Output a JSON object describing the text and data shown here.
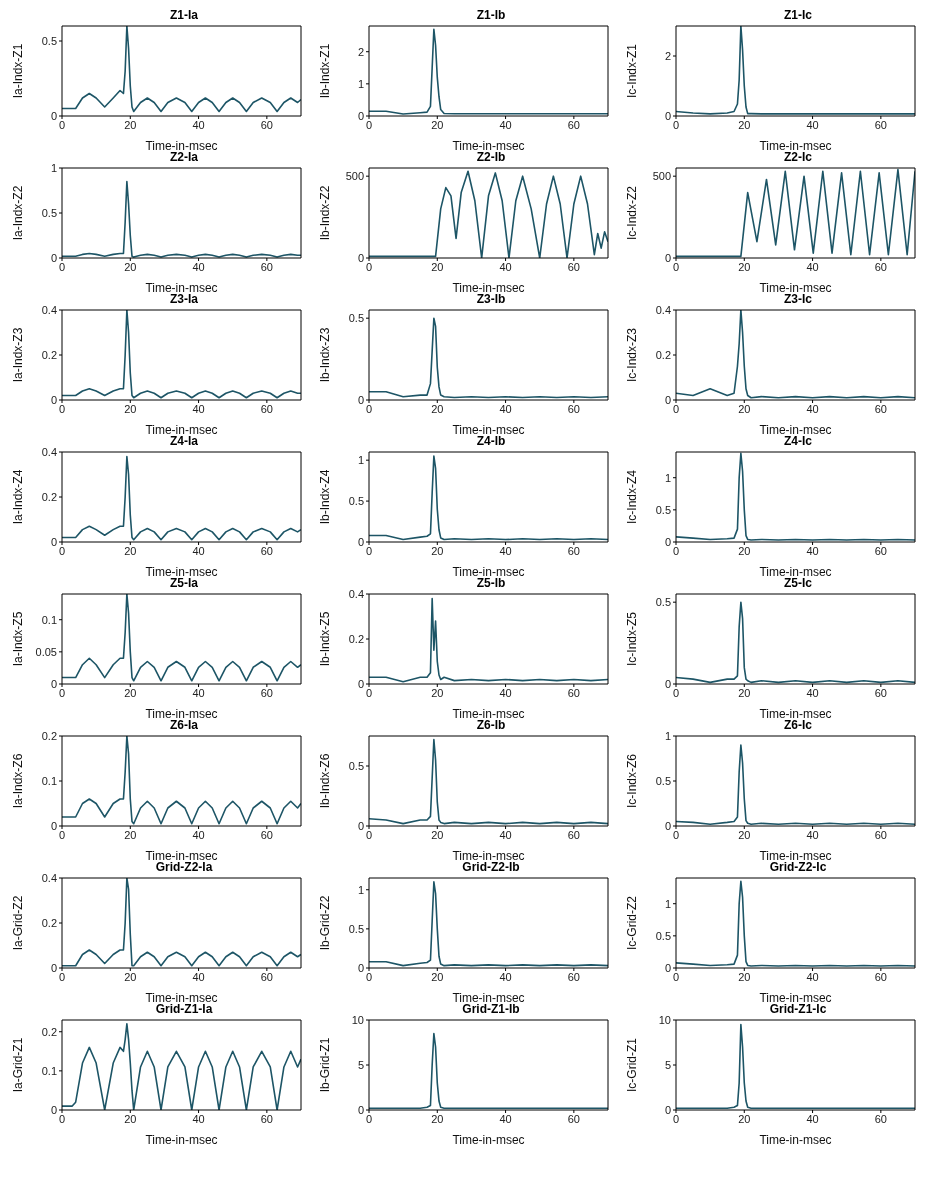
{
  "chart_data": [
    {
      "type": "line",
      "title": "Z1-Ia",
      "xlabel": "Time-in-msec",
      "ylabel": "Ia-Indx-Z1",
      "color": "#1d5566",
      "xlim": [
        0,
        70
      ],
      "xticks": [
        0,
        20,
        40,
        60
      ],
      "ylim": [
        0,
        0.6
      ],
      "yticks": [
        0,
        0.5
      ],
      "x": [
        0,
        3,
        4,
        6,
        8,
        10,
        12.5,
        15,
        17,
        18,
        18.5,
        19,
        19.5,
        20,
        20.5,
        21,
        23,
        25,
        27,
        29,
        31,
        33.5,
        36,
        38,
        40,
        42,
        44,
        46,
        48,
        50,
        52,
        54,
        56,
        58.5,
        61,
        63,
        65,
        67,
        69,
        70
      ],
      "values": [
        0.05,
        0.05,
        0.05,
        0.12,
        0.15,
        0.12,
        0.06,
        0.12,
        0.17,
        0.15,
        0.3,
        0.6,
        0.45,
        0.2,
        0.06,
        0.03,
        0.09,
        0.12,
        0.09,
        0.03,
        0.09,
        0.12,
        0.09,
        0.03,
        0.09,
        0.12,
        0.09,
        0.03,
        0.09,
        0.12,
        0.09,
        0.03,
        0.09,
        0.12,
        0.09,
        0.03,
        0.09,
        0.12,
        0.09,
        0.11
      ]
    },
    {
      "type": "line",
      "title": "Z1-Ib",
      "xlabel": "Time-in-msec",
      "ylabel": "Ib-Indx-Z1",
      "color": "#1d5566",
      "xlim": [
        0,
        70
      ],
      "xticks": [
        0,
        20,
        40,
        60
      ],
      "ylim": [
        0,
        2.8
      ],
      "yticks": [
        0,
        1,
        2
      ],
      "x": [
        0,
        5,
        10,
        15,
        17,
        18,
        18.5,
        19,
        19.5,
        20,
        20.5,
        21,
        22,
        25,
        30,
        35,
        40,
        45,
        50,
        55,
        60,
        65,
        70
      ],
      "values": [
        0.15,
        0.15,
        0.06,
        0.1,
        0.12,
        0.3,
        1.5,
        2.7,
        2.2,
        1.2,
        0.6,
        0.2,
        0.08,
        0.07,
        0.07,
        0.07,
        0.07,
        0.07,
        0.07,
        0.07,
        0.07,
        0.07,
        0.07
      ]
    },
    {
      "type": "line",
      "title": "Z1-Ic",
      "xlabel": "Time-in-msec",
      "ylabel": "Ic-Indx-Z1",
      "color": "#1d5566",
      "xlim": [
        0,
        70
      ],
      "xticks": [
        0,
        20,
        40,
        60
      ],
      "ylim": [
        0,
        3
      ],
      "yticks": [
        0,
        2
      ],
      "x": [
        0,
        5,
        10,
        15,
        17,
        18,
        18.5,
        19,
        19.5,
        20,
        20.5,
        21,
        22,
        25,
        30,
        35,
        40,
        45,
        50,
        55,
        60,
        65,
        70
      ],
      "values": [
        0.15,
        0.1,
        0.07,
        0.1,
        0.15,
        0.4,
        1.2,
        3,
        2.2,
        1,
        0.3,
        0.08,
        0.08,
        0.07,
        0.07,
        0.07,
        0.07,
        0.07,
        0.07,
        0.07,
        0.07,
        0.07,
        0.07
      ]
    },
    {
      "type": "line",
      "title": "Z2-Ia",
      "xlabel": "Time-in-msec",
      "ylabel": "Ia-Indx-Z2",
      "color": "#1d5566",
      "xlim": [
        0,
        70
      ],
      "xticks": [
        0,
        20,
        40,
        60
      ],
      "ylim": [
        0,
        1
      ],
      "yticks": [
        0,
        0.5,
        1
      ],
      "x": [
        0,
        3,
        4,
        6,
        8,
        10,
        12.5,
        15,
        17,
        18,
        18.5,
        19,
        19.5,
        20,
        20.5,
        21,
        23,
        25,
        27,
        29,
        31,
        33.5,
        36,
        38,
        40,
        42,
        44,
        46,
        48,
        50,
        52,
        54,
        56,
        58.5,
        61,
        63,
        65,
        67,
        69,
        70
      ],
      "values": [
        0.02,
        0.02,
        0.02,
        0.04,
        0.05,
        0.04,
        0.02,
        0.04,
        0.05,
        0.05,
        0.4,
        0.85,
        0.6,
        0.25,
        0.02,
        0.01,
        0.03,
        0.04,
        0.03,
        0.01,
        0.03,
        0.04,
        0.03,
        0.01,
        0.03,
        0.04,
        0.03,
        0.01,
        0.03,
        0.04,
        0.03,
        0.01,
        0.03,
        0.04,
        0.03,
        0.01,
        0.03,
        0.04,
        0.03,
        0.03
      ]
    },
    {
      "type": "line",
      "title": "Z2-Ib",
      "xlabel": "Time-in-msec",
      "ylabel": "Ib-Indx-Z2",
      "color": "#1d5566",
      "xlim": [
        0,
        70
      ],
      "xticks": [
        0,
        20,
        40,
        60
      ],
      "ylim": [
        0,
        550
      ],
      "yticks": [
        0,
        500
      ],
      "x": [
        0,
        10,
        17,
        18,
        19.5,
        21,
        22.5,
        24,
        25.5,
        27,
        29,
        31,
        33,
        35,
        37,
        39,
        41,
        43,
        45,
        47.5,
        50,
        52,
        54,
        56,
        58,
        60,
        62,
        64,
        66,
        67,
        68,
        69,
        70
      ],
      "values": [
        10,
        10,
        10,
        10,
        10,
        300,
        430,
        380,
        120,
        400,
        530,
        350,
        0,
        380,
        520,
        350,
        0,
        350,
        500,
        300,
        0,
        330,
        500,
        330,
        0,
        330,
        500,
        330,
        20,
        150,
        60,
        160,
        100
      ]
    },
    {
      "type": "line",
      "title": "Z2-Ic",
      "xlabel": "Time-in-msec",
      "ylabel": "Ic-Indx-Z2",
      "color": "#1d5566",
      "xlim": [
        0,
        70
      ],
      "xticks": [
        0,
        20,
        40,
        60
      ],
      "ylim": [
        0,
        550
      ],
      "yticks": [
        0,
        500
      ],
      "x": [
        0,
        10,
        18,
        19,
        21,
        23.7,
        26.5,
        29.2,
        32,
        34.7,
        37.5,
        40.2,
        43,
        45.7,
        48.5,
        51.2,
        54,
        56.7,
        59.5,
        62.2,
        65,
        67.7,
        70
      ],
      "values": [
        10,
        10,
        10,
        10,
        400,
        100,
        480,
        80,
        530,
        50,
        500,
        30,
        530,
        30,
        520,
        20,
        530,
        20,
        520,
        20,
        540,
        20,
        530
      ]
    },
    {
      "type": "line",
      "title": "Z3-Ia",
      "xlabel": "Time-in-msec",
      "ylabel": "Ia-Indx-Z3",
      "color": "#1d5566",
      "xlim": [
        0,
        70
      ],
      "xticks": [
        0,
        20,
        40,
        60
      ],
      "ylim": [
        0,
        0.4
      ],
      "yticks": [
        0,
        0.2,
        0.4
      ],
      "x": [
        0,
        3,
        4,
        6,
        8,
        10,
        12.5,
        15,
        17,
        18,
        18.5,
        19,
        19.5,
        20,
        20.5,
        21,
        23,
        25,
        27,
        29,
        31,
        33.5,
        36,
        38,
        40,
        42,
        44,
        46,
        48,
        50,
        52,
        54,
        56,
        58.5,
        61,
        63,
        65,
        67,
        69,
        70
      ],
      "values": [
        0.02,
        0.02,
        0.02,
        0.04,
        0.05,
        0.04,
        0.02,
        0.04,
        0.05,
        0.05,
        0.2,
        0.4,
        0.3,
        0.12,
        0.02,
        0.01,
        0.03,
        0.04,
        0.03,
        0.01,
        0.03,
        0.04,
        0.03,
        0.01,
        0.03,
        0.04,
        0.03,
        0.01,
        0.03,
        0.04,
        0.03,
        0.01,
        0.03,
        0.04,
        0.03,
        0.01,
        0.03,
        0.04,
        0.03,
        0.03
      ]
    },
    {
      "type": "line",
      "title": "Z3-Ib",
      "xlabel": "Time-in-msec",
      "ylabel": "Ib-Indx-Z3",
      "color": "#1d5566",
      "xlim": [
        0,
        70
      ],
      "xticks": [
        0,
        20,
        40,
        60
      ],
      "ylim": [
        0,
        0.55
      ],
      "yticks": [
        0,
        0.5
      ],
      "x": [
        0,
        5,
        10,
        15,
        17,
        18,
        18.5,
        19,
        19.5,
        20,
        20.5,
        21,
        22,
        25,
        30,
        35,
        40,
        45,
        50,
        55,
        60,
        65,
        70
      ],
      "values": [
        0.05,
        0.05,
        0.02,
        0.03,
        0.03,
        0.1,
        0.3,
        0.5,
        0.45,
        0.2,
        0.08,
        0.03,
        0.02,
        0.015,
        0.02,
        0.015,
        0.02,
        0.015,
        0.02,
        0.015,
        0.02,
        0.015,
        0.02
      ]
    },
    {
      "type": "line",
      "title": "Z3-Ic",
      "xlabel": "Time-in-msec",
      "ylabel": "Ic-Indx-Z3",
      "color": "#1d5566",
      "xlim": [
        0,
        70
      ],
      "xticks": [
        0,
        20,
        40,
        60
      ],
      "ylim": [
        0,
        0.4
      ],
      "yticks": [
        0,
        0.2,
        0.4
      ],
      "x": [
        0,
        5,
        10,
        15,
        17,
        18,
        18.5,
        19,
        19.5,
        20,
        20.5,
        21,
        22,
        25,
        30,
        35,
        40,
        45,
        50,
        55,
        60,
        65,
        70
      ],
      "values": [
        0.03,
        0.02,
        0.05,
        0.02,
        0.03,
        0.15,
        0.25,
        0.4,
        0.3,
        0.15,
        0.05,
        0.02,
        0.01,
        0.015,
        0.01,
        0.015,
        0.01,
        0.015,
        0.01,
        0.015,
        0.01,
        0.015,
        0.01
      ]
    },
    {
      "type": "line",
      "title": "Z4-Ia",
      "xlabel": "Time-in-msec",
      "ylabel": "Ia-Indx-Z4",
      "color": "#1d5566",
      "xlim": [
        0,
        70
      ],
      "xticks": [
        0,
        20,
        40,
        60
      ],
      "ylim": [
        0,
        0.4
      ],
      "yticks": [
        0,
        0.2,
        0.4
      ],
      "x": [
        0,
        3,
        4,
        6,
        8,
        10,
        12.5,
        15,
        17,
        18,
        18.5,
        19,
        19.5,
        20,
        20.5,
        21,
        23,
        25,
        27,
        29,
        31,
        33.5,
        36,
        38,
        40,
        42,
        44,
        46,
        48,
        50,
        52,
        54,
        56,
        58.5,
        61,
        63,
        65,
        67,
        69,
        70
      ],
      "values": [
        0.02,
        0.02,
        0.02,
        0.055,
        0.07,
        0.055,
        0.03,
        0.055,
        0.07,
        0.07,
        0.2,
        0.38,
        0.3,
        0.12,
        0.02,
        0.01,
        0.045,
        0.06,
        0.045,
        0.01,
        0.045,
        0.06,
        0.045,
        0.01,
        0.045,
        0.06,
        0.045,
        0.01,
        0.045,
        0.06,
        0.045,
        0.01,
        0.045,
        0.06,
        0.045,
        0.01,
        0.045,
        0.06,
        0.045,
        0.055
      ]
    },
    {
      "type": "line",
      "title": "Z4-Ib",
      "xlabel": "Time-in-msec",
      "ylabel": "Ib-Indx-Z4",
      "color": "#1d5566",
      "xlim": [
        0,
        70
      ],
      "xticks": [
        0,
        20,
        40,
        60
      ],
      "ylim": [
        0,
        1.1
      ],
      "yticks": [
        0,
        0.5,
        1
      ],
      "x": [
        0,
        5,
        10,
        15,
        17,
        18,
        18.5,
        19,
        19.5,
        20,
        20.5,
        21,
        22,
        25,
        30,
        35,
        40,
        45,
        50,
        55,
        60,
        65,
        70
      ],
      "values": [
        0.08,
        0.08,
        0.03,
        0.06,
        0.07,
        0.1,
        0.6,
        1.05,
        0.9,
        0.4,
        0.15,
        0.05,
        0.03,
        0.04,
        0.03,
        0.04,
        0.03,
        0.04,
        0.03,
        0.04,
        0.03,
        0.04,
        0.03
      ]
    },
    {
      "type": "line",
      "title": "Z4-Ic",
      "xlabel": "Time-in-msec",
      "ylabel": "Ic-Indx-Z4",
      "color": "#1d5566",
      "xlim": [
        0,
        70
      ],
      "xticks": [
        0,
        20,
        40,
        60
      ],
      "ylim": [
        0,
        1.4
      ],
      "yticks": [
        0,
        0.5,
        1
      ],
      "x": [
        0,
        5,
        10,
        15,
        17,
        18,
        18.5,
        19,
        19.5,
        20,
        20.5,
        21,
        22,
        25,
        30,
        35,
        40,
        45,
        50,
        55,
        60,
        65,
        70
      ],
      "values": [
        0.08,
        0.06,
        0.04,
        0.05,
        0.06,
        0.2,
        1,
        1.38,
        1.1,
        0.5,
        0.1,
        0.04,
        0.03,
        0.04,
        0.03,
        0.04,
        0.03,
        0.04,
        0.03,
        0.04,
        0.03,
        0.04,
        0.03
      ]
    },
    {
      "type": "line",
      "title": "Z5-Ia",
      "xlabel": "Time-in-msec",
      "ylabel": "Ia-Indx-Z5",
      "color": "#1d5566",
      "xlim": [
        0,
        70
      ],
      "xticks": [
        0,
        20,
        40,
        60
      ],
      "ylim": [
        0,
        0.14
      ],
      "yticks": [
        0,
        0.05,
        0.1
      ],
      "x": [
        0,
        3,
        4,
        6,
        8,
        10,
        12.5,
        15,
        17,
        18,
        18.5,
        19,
        19.5,
        20,
        20.5,
        21,
        23,
        25,
        27,
        29,
        31,
        33.5,
        36,
        38,
        40,
        42,
        44,
        46,
        48,
        50,
        52,
        54,
        56,
        58.5,
        61,
        63,
        65,
        67,
        69,
        70
      ],
      "values": [
        0.01,
        0.01,
        0.01,
        0.03,
        0.04,
        0.03,
        0.01,
        0.03,
        0.04,
        0.04,
        0.08,
        0.14,
        0.11,
        0.05,
        0.01,
        0.005,
        0.026,
        0.035,
        0.026,
        0.005,
        0.026,
        0.035,
        0.026,
        0.005,
        0.026,
        0.035,
        0.026,
        0.005,
        0.026,
        0.035,
        0.026,
        0.005,
        0.026,
        0.035,
        0.026,
        0.005,
        0.026,
        0.035,
        0.026,
        0.03
      ]
    },
    {
      "type": "line",
      "title": "Z5-Ib",
      "xlabel": "Time-in-msec",
      "ylabel": "Ib-Indx-Z5",
      "color": "#1d5566",
      "xlim": [
        0,
        70
      ],
      "xticks": [
        0,
        20,
        40,
        60
      ],
      "ylim": [
        0,
        0.4
      ],
      "yticks": [
        0,
        0.2,
        0.4
      ],
      "x": [
        0,
        5,
        10,
        15,
        17,
        18,
        18.5,
        19,
        19.5,
        20,
        20.5,
        21,
        22,
        25,
        30,
        35,
        40,
        45,
        50,
        55,
        60,
        65,
        70
      ],
      "values": [
        0.03,
        0.03,
        0.01,
        0.03,
        0.03,
        0.05,
        0.38,
        0.15,
        0.28,
        0.1,
        0.04,
        0.02,
        0.03,
        0.015,
        0.02,
        0.015,
        0.02,
        0.015,
        0.02,
        0.015,
        0.02,
        0.015,
        0.02
      ]
    },
    {
      "type": "line",
      "title": "Z5-Ic",
      "xlabel": "Time-in-msec",
      "ylabel": "Ic-Indx-Z5",
      "color": "#1d5566",
      "xlim": [
        0,
        70
      ],
      "xticks": [
        0,
        20,
        40,
        60
      ],
      "ylim": [
        0,
        0.55
      ],
      "yticks": [
        0,
        0.5
      ],
      "x": [
        0,
        5,
        10,
        15,
        17,
        18,
        18.5,
        19,
        19.5,
        20,
        20.5,
        21,
        22,
        25,
        30,
        35,
        40,
        45,
        50,
        55,
        60,
        65,
        70
      ],
      "values": [
        0.04,
        0.03,
        0.01,
        0.03,
        0.03,
        0.05,
        0.35,
        0.5,
        0.4,
        0.1,
        0.03,
        0.02,
        0.01,
        0.02,
        0.01,
        0.02,
        0.01,
        0.02,
        0.01,
        0.02,
        0.01,
        0.02,
        0.01
      ]
    },
    {
      "type": "line",
      "title": "Z6-Ia",
      "xlabel": "Time-in-msec",
      "ylabel": "Ia-Indx-Z6",
      "color": "#1d5566",
      "xlim": [
        0,
        70
      ],
      "xticks": [
        0,
        20,
        40,
        60
      ],
      "ylim": [
        0,
        0.2
      ],
      "yticks": [
        0,
        0.1,
        0.2
      ],
      "x": [
        0,
        3,
        4,
        6,
        8,
        10,
        12.5,
        15,
        17,
        18,
        18.5,
        19,
        19.5,
        20,
        20.5,
        21,
        23,
        25,
        27,
        29,
        31,
        33.5,
        36,
        38,
        40,
        42,
        44,
        46,
        48,
        50,
        52,
        54,
        56,
        58.5,
        61,
        63,
        65,
        67,
        69,
        70
      ],
      "values": [
        0.02,
        0.02,
        0.02,
        0.05,
        0.06,
        0.05,
        0.02,
        0.05,
        0.06,
        0.06,
        0.12,
        0.2,
        0.16,
        0.06,
        0.01,
        0.005,
        0.04,
        0.055,
        0.04,
        0.005,
        0.04,
        0.055,
        0.04,
        0.005,
        0.04,
        0.055,
        0.04,
        0.005,
        0.04,
        0.055,
        0.04,
        0.005,
        0.04,
        0.055,
        0.04,
        0.005,
        0.04,
        0.055,
        0.04,
        0.05
      ]
    },
    {
      "type": "line",
      "title": "Z6-Ib",
      "xlabel": "Time-in-msec",
      "ylabel": "Ib-Indx-Z6",
      "color": "#1d5566",
      "xlim": [
        0,
        70
      ],
      "xticks": [
        0,
        20,
        40,
        60
      ],
      "ylim": [
        0,
        0.75
      ],
      "yticks": [
        0,
        0.5
      ],
      "x": [
        0,
        5,
        10,
        15,
        17,
        18,
        18.5,
        19,
        19.5,
        20,
        20.5,
        21,
        22,
        25,
        30,
        35,
        40,
        45,
        50,
        55,
        60,
        65,
        70
      ],
      "values": [
        0.06,
        0.05,
        0.02,
        0.05,
        0.05,
        0.08,
        0.4,
        0.72,
        0.55,
        0.2,
        0.05,
        0.03,
        0.02,
        0.03,
        0.02,
        0.03,
        0.02,
        0.03,
        0.02,
        0.03,
        0.02,
        0.03,
        0.02
      ]
    },
    {
      "type": "line",
      "title": "Z6-Ic",
      "xlabel": "Time-in-msec",
      "ylabel": "Ic-Indx-Z6",
      "color": "#1d5566",
      "xlim": [
        0,
        70
      ],
      "xticks": [
        0,
        20,
        40,
        60
      ],
      "ylim": [
        0,
        1
      ],
      "yticks": [
        0,
        0.5,
        1
      ],
      "x": [
        0,
        5,
        10,
        15,
        17,
        18,
        18.5,
        19,
        19.5,
        20,
        20.5,
        21,
        22,
        25,
        30,
        35,
        40,
        45,
        50,
        55,
        60,
        65,
        70
      ],
      "values": [
        0.05,
        0.04,
        0.02,
        0.04,
        0.05,
        0.1,
        0.6,
        0.9,
        0.7,
        0.3,
        0.06,
        0.03,
        0.02,
        0.03,
        0.02,
        0.03,
        0.02,
        0.03,
        0.02,
        0.03,
        0.02,
        0.03,
        0.02
      ]
    },
    {
      "type": "line",
      "title": "Grid-Z2-Ia",
      "xlabel": "Time-in-msec",
      "ylabel": "Ia-Grid-Z2",
      "color": "#1d5566",
      "xlim": [
        0,
        70
      ],
      "xticks": [
        0,
        20,
        40,
        60
      ],
      "ylim": [
        0,
        0.4
      ],
      "yticks": [
        0,
        0.2,
        0.4
      ],
      "x": [
        0,
        3,
        4,
        6,
        8,
        10,
        12.5,
        15,
        17,
        18,
        18.5,
        19,
        19.5,
        20,
        20.5,
        21,
        23,
        25,
        27,
        29,
        31,
        33.5,
        36,
        38,
        40,
        42,
        44,
        46,
        48,
        50,
        52,
        54,
        56,
        58.5,
        61,
        63,
        65,
        67,
        69,
        70
      ],
      "values": [
        0.01,
        0.01,
        0.01,
        0.06,
        0.08,
        0.06,
        0.02,
        0.06,
        0.08,
        0.08,
        0.2,
        0.4,
        0.35,
        0.15,
        0.01,
        0.01,
        0.05,
        0.07,
        0.05,
        0.01,
        0.05,
        0.07,
        0.05,
        0.01,
        0.05,
        0.07,
        0.05,
        0.01,
        0.05,
        0.07,
        0.05,
        0.01,
        0.05,
        0.07,
        0.05,
        0.01,
        0.05,
        0.07,
        0.05,
        0.06
      ]
    },
    {
      "type": "line",
      "title": "Grid-Z2-Ib",
      "xlabel": "Time-in-msec",
      "ylabel": "Ib-Grid-Z2",
      "color": "#1d5566",
      "xlim": [
        0,
        70
      ],
      "xticks": [
        0,
        20,
        40,
        60
      ],
      "ylim": [
        0,
        1.15
      ],
      "yticks": [
        0,
        0.5,
        1
      ],
      "x": [
        0,
        5,
        10,
        15,
        17,
        18,
        18.5,
        19,
        19.5,
        20,
        20.5,
        21,
        22,
        25,
        30,
        35,
        40,
        45,
        50,
        55,
        60,
        65,
        70
      ],
      "values": [
        0.08,
        0.08,
        0.03,
        0.06,
        0.07,
        0.1,
        0.6,
        1.1,
        0.95,
        0.5,
        0.15,
        0.05,
        0.03,
        0.04,
        0.03,
        0.04,
        0.03,
        0.04,
        0.03,
        0.04,
        0.03,
        0.04,
        0.03
      ]
    },
    {
      "type": "line",
      "title": "Grid-Z2-Ic",
      "xlabel": "Time-in-msec",
      "ylabel": "Ic-Grid-Z2",
      "color": "#1d5566",
      "xlim": [
        0,
        70
      ],
      "xticks": [
        0,
        20,
        40,
        60
      ],
      "ylim": [
        0,
        1.4
      ],
      "yticks": [
        0,
        0.5,
        1
      ],
      "x": [
        0,
        5,
        10,
        15,
        17,
        18,
        18.5,
        19,
        19.5,
        20,
        20.5,
        21,
        22,
        25,
        30,
        35,
        40,
        45,
        50,
        55,
        60,
        65,
        70
      ],
      "values": [
        0.08,
        0.06,
        0.04,
        0.05,
        0.06,
        0.2,
        1,
        1.35,
        1.1,
        0.5,
        0.1,
        0.04,
        0.03,
        0.04,
        0.03,
        0.04,
        0.03,
        0.04,
        0.03,
        0.04,
        0.03,
        0.04,
        0.03
      ]
    },
    {
      "type": "line",
      "title": "Grid-Z1-Ia",
      "xlabel": "Time-in-msec",
      "ylabel": "Ia-Grid-Z1",
      "color": "#1d5566",
      "xlim": [
        0,
        70
      ],
      "xticks": [
        0,
        20,
        40,
        60
      ],
      "ylim": [
        0,
        0.23
      ],
      "yticks": [
        0,
        0.1,
        0.2
      ],
      "x": [
        0,
        3,
        4,
        6,
        8,
        10,
        12.5,
        15,
        17,
        18,
        18.5,
        19,
        19.5,
        20,
        20.5,
        21,
        23,
        25,
        27,
        29,
        31,
        33.5,
        36,
        38,
        40,
        42,
        44,
        46,
        48,
        50,
        52,
        54,
        56,
        58.5,
        61,
        63,
        65,
        67,
        69,
        70
      ],
      "values": [
        0.01,
        0.01,
        0.02,
        0.12,
        0.16,
        0.12,
        0,
        0.12,
        0.16,
        0.15,
        0.18,
        0.22,
        0.18,
        0.12,
        0.05,
        0,
        0.11,
        0.15,
        0.11,
        0,
        0.11,
        0.15,
        0.11,
        0,
        0.11,
        0.15,
        0.11,
        0,
        0.11,
        0.15,
        0.11,
        0,
        0.11,
        0.15,
        0.11,
        0,
        0.11,
        0.15,
        0.11,
        0.13
      ]
    },
    {
      "type": "line",
      "title": "Grid-Z1-Ib",
      "xlabel": "Time-in-msec",
      "ylabel": "Ib-Grid-Z1",
      "color": "#1d5566",
      "xlim": [
        0,
        70
      ],
      "xticks": [
        0,
        20,
        40,
        60
      ],
      "ylim": [
        0,
        10
      ],
      "yticks": [
        0,
        5,
        10
      ],
      "x": [
        0,
        5,
        10,
        15,
        17,
        18,
        18.5,
        19,
        19.5,
        20,
        20.5,
        21,
        22,
        25,
        30,
        35,
        40,
        45,
        50,
        55,
        60,
        65,
        70
      ],
      "values": [
        0.2,
        0.2,
        0.2,
        0.2,
        0.3,
        0.5,
        5,
        8.5,
        7,
        3,
        1,
        0.3,
        0.2,
        0.2,
        0.2,
        0.2,
        0.2,
        0.2,
        0.2,
        0.2,
        0.2,
        0.2,
        0.2
      ]
    },
    {
      "type": "line",
      "title": "Grid-Z1-Ic",
      "xlabel": "Time-in-msec",
      "ylabel": "Ic-Grid-Z1",
      "color": "#1d5566",
      "xlim": [
        0,
        70
      ],
      "xticks": [
        0,
        20,
        40,
        60
      ],
      "ylim": [
        0,
        10
      ],
      "yticks": [
        0,
        5,
        10
      ],
      "x": [
        0,
        5,
        10,
        15,
        17,
        18,
        18.5,
        19,
        19.5,
        20,
        20.5,
        21,
        22,
        25,
        30,
        35,
        40,
        45,
        50,
        55,
        60,
        65,
        70
      ],
      "values": [
        0.2,
        0.2,
        0.2,
        0.2,
        0.3,
        0.5,
        3,
        9.5,
        7,
        3,
        1,
        0.3,
        0.2,
        0.2,
        0.2,
        0.2,
        0.2,
        0.2,
        0.2,
        0.2,
        0.2,
        0.2,
        0.2
      ]
    }
  ]
}
